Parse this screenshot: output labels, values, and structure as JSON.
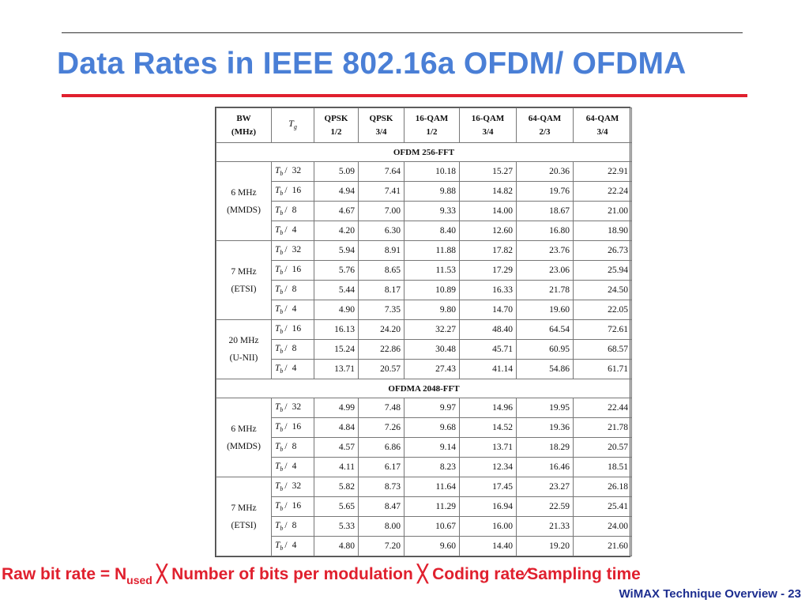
{
  "slide": {
    "title": "Data Rates in IEEE 802.16a OFDM/ OFDMA",
    "footer": "WiMAX Technique Overview - 23",
    "formula": {
      "part1": "Raw bit rate = N",
      "subscript": "used",
      "part2": " ╳ Number of bits per modulation ╳ Coding rate⁄Sampling time"
    }
  },
  "table": {
    "headers": {
      "bw_line1": "BW",
      "bw_line2": "(MHz)",
      "tg_symbol": "T",
      "tg_sub": "g",
      "cols": [
        [
          "QPSK",
          "1/2"
        ],
        [
          "QPSK",
          "3/4"
        ],
        [
          "16-QAM",
          "1/2"
        ],
        [
          "16-QAM",
          "3/4"
        ],
        [
          "64-QAM",
          "2/3"
        ],
        [
          "64-QAM",
          "3/4"
        ]
      ]
    },
    "tb_symbol": "T",
    "tb_sub": "b",
    "slash": "/",
    "sections": [
      {
        "title": "OFDM 256-FFT",
        "groups": [
          {
            "bw1": "6 MHz",
            "bw2": "(MMDS)",
            "rows": [
              {
                "div": "32",
                "values": [
                  "5.09",
                  "7.64",
                  "10.18",
                  "15.27",
                  "20.36",
                  "22.91"
                ]
              },
              {
                "div": "16",
                "values": [
                  "4.94",
                  "7.41",
                  "9.88",
                  "14.82",
                  "19.76",
                  "22.24"
                ]
              },
              {
                "div": "8",
                "values": [
                  "4.67",
                  "7.00",
                  "9.33",
                  "14.00",
                  "18.67",
                  "21.00"
                ]
              },
              {
                "div": "4",
                "values": [
                  "4.20",
                  "6.30",
                  "8.40",
                  "12.60",
                  "16.80",
                  "18.90"
                ]
              }
            ]
          },
          {
            "bw1": "7 MHz",
            "bw2": "(ETSI)",
            "rows": [
              {
                "div": "32",
                "values": [
                  "5.94",
                  "8.91",
                  "11.88",
                  "17.82",
                  "23.76",
                  "26.73"
                ]
              },
              {
                "div": "16",
                "values": [
                  "5.76",
                  "8.65",
                  "11.53",
                  "17.29",
                  "23.06",
                  "25.94"
                ]
              },
              {
                "div": "8",
                "values": [
                  "5.44",
                  "8.17",
                  "10.89",
                  "16.33",
                  "21.78",
                  "24.50"
                ]
              },
              {
                "div": "4",
                "values": [
                  "4.90",
                  "7.35",
                  "9.80",
                  "14.70",
                  "19.60",
                  "22.05"
                ]
              }
            ]
          },
          {
            "bw1": "20 MHz",
            "bw2": "(U-NII)",
            "rows": [
              {
                "div": "16",
                "values": [
                  "16.13",
                  "24.20",
                  "32.27",
                  "48.40",
                  "64.54",
                  "72.61"
                ]
              },
              {
                "div": "8",
                "values": [
                  "15.24",
                  "22.86",
                  "30.48",
                  "45.71",
                  "60.95",
                  "68.57"
                ]
              },
              {
                "div": "4",
                "values": [
                  "13.71",
                  "20.57",
                  "27.43",
                  "41.14",
                  "54.86",
                  "61.71"
                ]
              }
            ]
          }
        ]
      },
      {
        "title": "OFDMA 2048-FFT",
        "groups": [
          {
            "bw1": "6 MHz",
            "bw2": "(MMDS)",
            "rows": [
              {
                "div": "32",
                "values": [
                  "4.99",
                  "7.48",
                  "9.97",
                  "14.96",
                  "19.95",
                  "22.44"
                ]
              },
              {
                "div": "16",
                "values": [
                  "4.84",
                  "7.26",
                  "9.68",
                  "14.52",
                  "19.36",
                  "21.78"
                ]
              },
              {
                "div": "8",
                "values": [
                  "4.57",
                  "6.86",
                  "9.14",
                  "13.71",
                  "18.29",
                  "20.57"
                ]
              },
              {
                "div": "4",
                "values": [
                  "4.11",
                  "6.17",
                  "8.23",
                  "12.34",
                  "16.46",
                  "18.51"
                ]
              }
            ]
          },
          {
            "bw1": "7 MHz",
            "bw2": "(ETSI)",
            "rows": [
              {
                "div": "32",
                "values": [
                  "5.82",
                  "8.73",
                  "11.64",
                  "17.45",
                  "23.27",
                  "26.18"
                ]
              },
              {
                "div": "16",
                "values": [
                  "5.65",
                  "8.47",
                  "11.29",
                  "16.94",
                  "22.59",
                  "25.41"
                ]
              },
              {
                "div": "8",
                "values": [
                  "5.33",
                  "8.00",
                  "10.67",
                  "16.00",
                  "21.33",
                  "24.00"
                ]
              },
              {
                "div": "4",
                "values": [
                  "4.80",
                  "7.20",
                  "9.60",
                  "14.40",
                  "19.20",
                  "21.60"
                ]
              }
            ]
          }
        ]
      }
    ]
  }
}
